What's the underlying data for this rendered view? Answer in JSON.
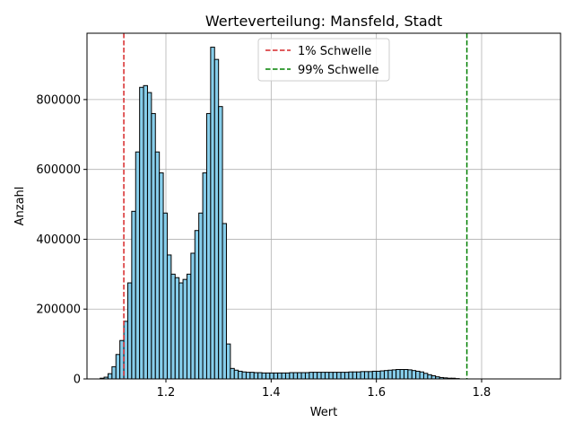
{
  "chart_data": {
    "type": "bar",
    "title": "Werteverteilung: Mansfeld, Stadt",
    "xlabel": "Wert",
    "ylabel": "Anzahl",
    "xlim": [
      1.05,
      1.95
    ],
    "ylim": [
      0,
      990000
    ],
    "x_ticks": [
      1.2,
      1.4,
      1.6,
      1.8
    ],
    "y_ticks": [
      0,
      200000,
      400000,
      600000,
      800000
    ],
    "grid": true,
    "legend_position": "top-center",
    "bar_color": "#87ceeb",
    "bar_edge_color": "#000000",
    "bin_start": 1.075,
    "bin_width": 0.0075,
    "values": [
      2000,
      5000,
      15000,
      35000,
      70000,
      110000,
      165000,
      275000,
      480000,
      650000,
      835000,
      840000,
      820000,
      760000,
      650000,
      590000,
      475000,
      355000,
      300000,
      290000,
      275000,
      285000,
      300000,
      360000,
      425000,
      475000,
      590000,
      760000,
      950000,
      915000,
      780000,
      445000,
      100000,
      30000,
      25000,
      22000,
      20000,
      19000,
      19000,
      18000,
      18000,
      17000,
      17000,
      17000,
      17000,
      17000,
      17000,
      17000,
      18000,
      18000,
      18000,
      18000,
      18000,
      19000,
      19000,
      19000,
      19000,
      19000,
      19000,
      19000,
      19000,
      19000,
      19000,
      20000,
      20000,
      20000,
      21000,
      21000,
      21000,
      22000,
      22000,
      23000,
      24000,
      25000,
      26000,
      27000,
      27000,
      27000,
      26000,
      24000,
      22000,
      20000,
      16000,
      12000,
      9000,
      6000,
      4000,
      3000,
      2000,
      2000,
      1000
    ],
    "reference_lines": [
      {
        "name": "1% Schwelle",
        "x": 1.12,
        "color": "#d62728"
      },
      {
        "name": "99% Schwelle",
        "x": 1.772,
        "color": "#008000"
      }
    ]
  }
}
